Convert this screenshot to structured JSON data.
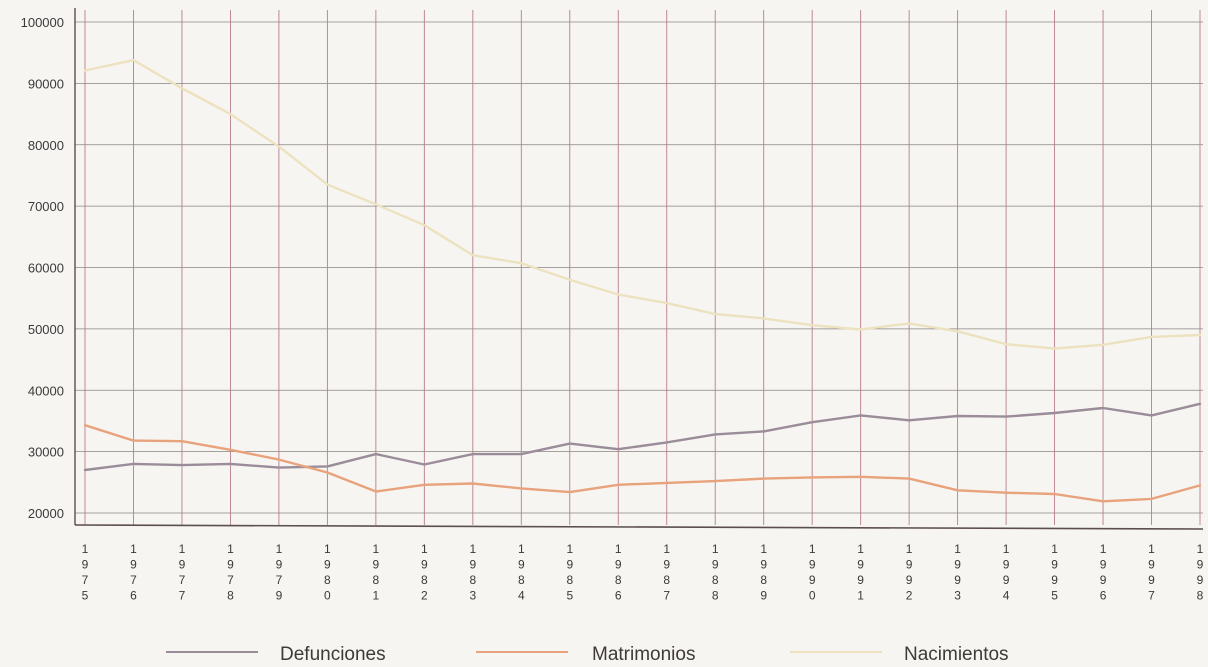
{
  "chart_data": {
    "type": "line",
    "title": "",
    "xlabel": "",
    "ylabel": "",
    "categories": [
      "1975",
      "1976",
      "1977",
      "1978",
      "1979",
      "1980",
      "1981",
      "1982",
      "1983",
      "1984",
      "1985",
      "1986",
      "1987",
      "1988",
      "1989",
      "1990",
      "1991",
      "1992",
      "1993",
      "1994",
      "1995",
      "1996",
      "1997",
      "1998"
    ],
    "y_ticks": [
      "20000",
      "30000",
      "40000",
      "50000",
      "60000",
      "70000",
      "80000",
      "90000",
      "100000"
    ],
    "ylim": [
      18000,
      100000
    ],
    "grid": true,
    "legend_position": "bottom",
    "colors": {
      "vertical_grid": "#b77e8a",
      "horizontal_grid": "#8a8480",
      "axis": "#5b4f4c",
      "background": "#f7f5f2"
    },
    "series": [
      {
        "name": "Defunciones",
        "color": "#9a8c98",
        "values": [
          27000,
          28000,
          27800,
          28000,
          27400,
          27600,
          29600,
          27900,
          29600,
          29600,
          31300,
          30400,
          31500,
          32800,
          33300,
          34800,
          35900,
          35100,
          35800,
          35700,
          36300,
          37100,
          35900,
          37800
        ]
      },
      {
        "name": "Matrimonios",
        "color": "#e8a27c",
        "values": [
          34300,
          31800,
          31700,
          30300,
          28700,
          26600,
          23500,
          24600,
          24800,
          24000,
          23400,
          24600,
          24900,
          25200,
          25600,
          25800,
          25900,
          25600,
          23700,
          23300,
          23100,
          21900,
          22300,
          24500
        ]
      },
      {
        "name": "Nacimientos",
        "color": "#ece2bf",
        "values": [
          92100,
          93800,
          89200,
          85000,
          79700,
          73500,
          70300,
          66900,
          62000,
          60700,
          58000,
          55600,
          54200,
          52400,
          51700,
          50600,
          49900,
          50900,
          49600,
          47500,
          46800,
          47400,
          48700,
          49000
        ]
      }
    ]
  }
}
